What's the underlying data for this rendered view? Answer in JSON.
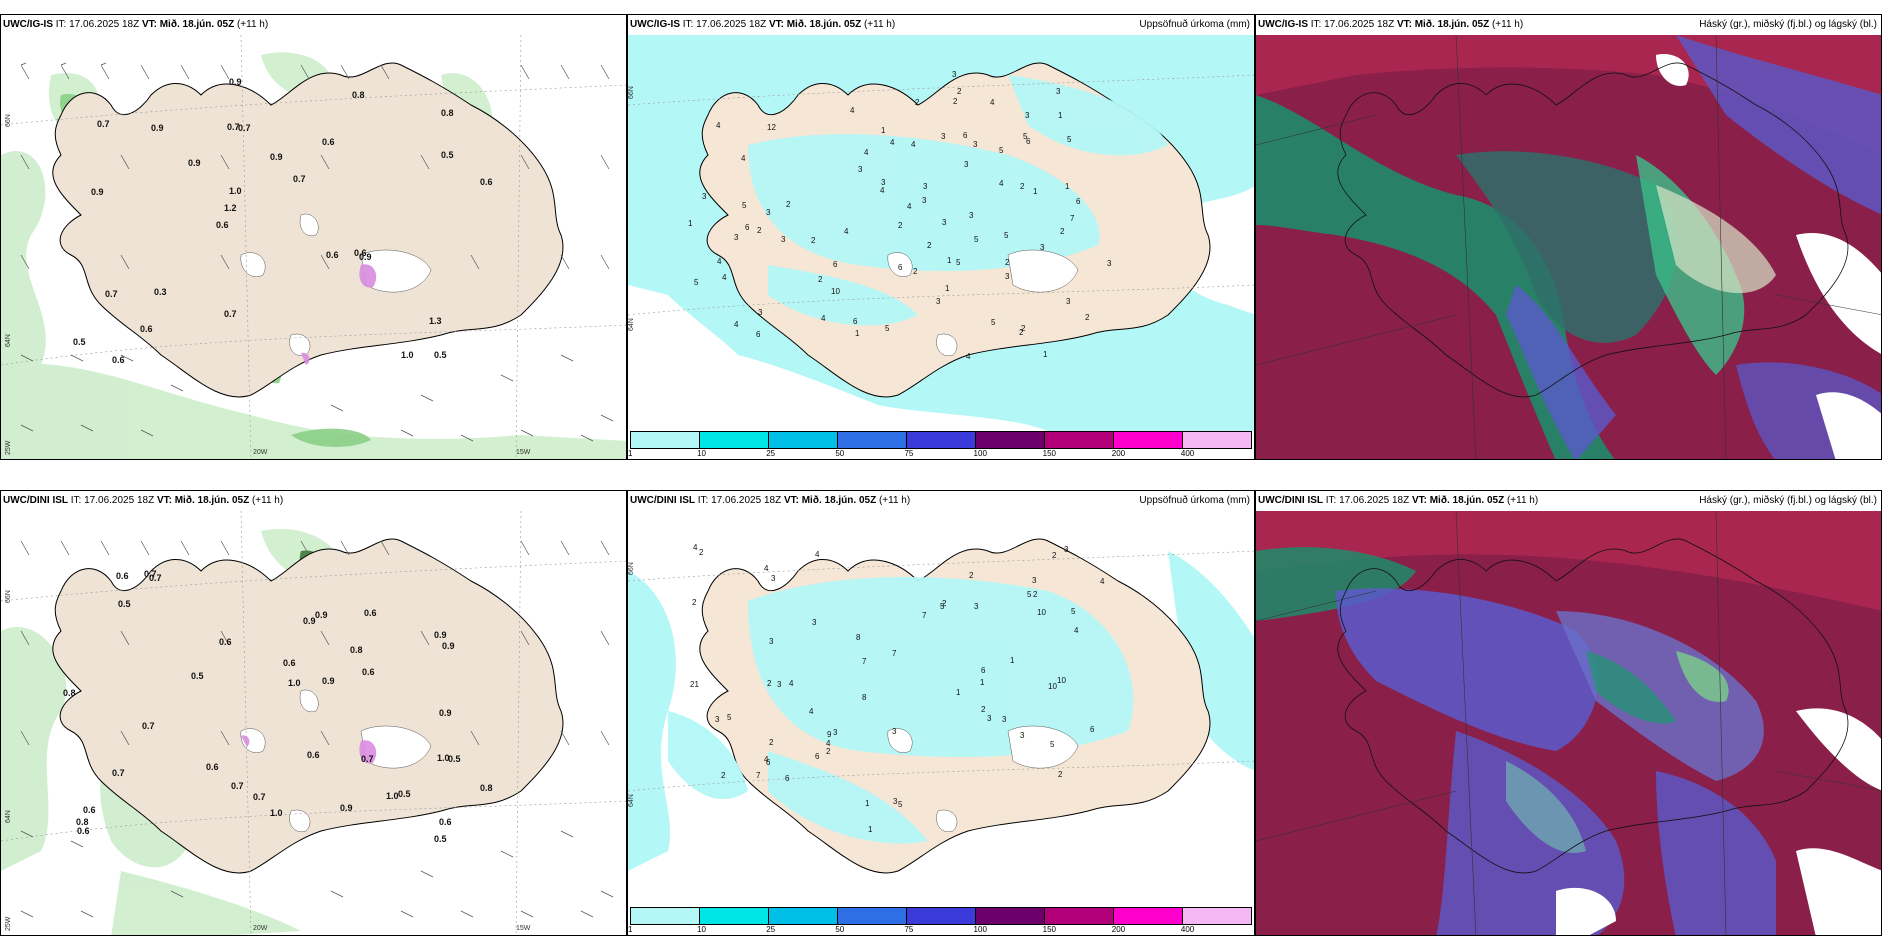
{
  "panels": [
    {
      "id": "p1",
      "title_model": "UWC/IG-IS",
      "title_it": " IT: 17.06.2025 18Z ",
      "title_vt_label": "VT:",
      "title_vt": " Mið. 18.jún. 05Z",
      "title_lead": " (+11 h)",
      "right_title": "",
      "lat_labels": [
        "66N",
        "64N"
      ],
      "lon_labels": [
        "20W",
        "15W",
        "25W"
      ],
      "values": [
        "0.5",
        "0.9",
        "0.8",
        "0.6",
        "0.6",
        "0.6",
        "0.7",
        "0.9",
        "0.7",
        "0.9",
        "0.5",
        "0.6",
        "0.7",
        "0.7",
        "0.9",
        "0.7",
        "0.9",
        "0.6",
        "0.6",
        "0.5",
        "1.2",
        "0.7",
        "1.0",
        "0.9",
        "0.8",
        "0.3",
        "1.0",
        "1.3",
        "0.6"
      ]
    },
    {
      "id": "p2",
      "title_model": "UWC/IG-IS",
      "title_it": " IT: 17.06.2025 18Z ",
      "title_vt_label": "VT:",
      "title_vt": " Mið. 18.jún. 05Z",
      "title_lead": " (+11 h)",
      "right_title": "Uppsöfnuð úrkoma (mm)",
      "lat_labels": [
        "66N",
        "64N"
      ],
      "colorbar": {
        "labels": [
          "1",
          "10",
          "25",
          "50",
          "75",
          "100",
          "150",
          "200",
          "400"
        ],
        "colors": [
          "#b3f7f7",
          "#00e6e6",
          "#00bfe6",
          "#2f6fe6",
          "#3b3bd9",
          "#6b006b",
          "#b3007a",
          "#ff00cc",
          "#f5b8f5"
        ]
      },
      "values": [
        "1",
        "2",
        "1",
        "4",
        "3",
        "4",
        "3",
        "2",
        "5",
        "4",
        "3",
        "2",
        "10",
        "4",
        "3",
        "4",
        "5",
        "4",
        "3",
        "4",
        "3",
        "4",
        "2",
        "3",
        "7",
        "5",
        "3",
        "2",
        "4",
        "1",
        "5",
        "3",
        "2",
        "6",
        "4",
        "3",
        "2",
        "5",
        "3",
        "4",
        "6",
        "2",
        "4",
        "3",
        "4",
        "3",
        "5",
        "2",
        "3",
        "6",
        "5",
        "1",
        "2",
        "1",
        "3",
        "1",
        "1",
        "3",
        "2",
        "4",
        "6",
        "5",
        "12",
        "2",
        "5",
        "4",
        "2",
        "3",
        "4",
        "6",
        "3",
        "5",
        "3",
        "2",
        "3",
        "6",
        "1",
        "1",
        "6",
        "2",
        "3",
        "3",
        "2",
        "6"
      ]
    },
    {
      "id": "p3",
      "title_model": "UWC/IG-IS",
      "title_it": " IT: 17.06.2025 18Z ",
      "title_vt_label": "VT:",
      "title_vt": " Mið. 18.jún. 05Z",
      "title_lead": " (+11 h)",
      "right_title": "Háský (gr.), miðský (fj.bl.) og lágský (bl.)"
    },
    {
      "id": "p4",
      "title_model": "UWC/DINI ISL",
      "title_it": " IT: 17.06.2025 18Z ",
      "title_vt_label": "VT:",
      "title_vt": " Mið. 18.jún. 05Z",
      "title_lead": " (+11 h)",
      "right_title": "",
      "lat_labels": [
        "66N",
        "64N"
      ],
      "lon_labels": [
        "20W",
        "15W",
        "25W"
      ],
      "values": [
        "0.7",
        "0.9",
        "1.0",
        "0.8",
        "0.9",
        "0.5",
        "0.6",
        "0.8",
        "0.5",
        "0.6",
        "0.7",
        "0.6",
        "0.9",
        "1.0",
        "0.6",
        "0.7",
        "0.5",
        "0.9",
        "0.6",
        "0.7",
        "0.7",
        "0.6",
        "0.5",
        "0.6",
        "0.7",
        "0.8",
        "1.0",
        "0.9",
        "0.5",
        "0.6",
        "0.7",
        "0.8",
        "1.0",
        "0.9",
        "0.6",
        "0.9",
        "0.6"
      ]
    },
    {
      "id": "p5",
      "title_model": "UWC/DINI ISL",
      "title_it": " IT: 17.06.2025 18Z ",
      "title_vt_label": "VT:",
      "title_vt": " Mið. 18.jún. 05Z",
      "title_lead": " (+11 h)",
      "right_title": "Uppsöfnuð úrkoma (mm)",
      "lat_labels": [
        "66N",
        "64N"
      ],
      "colorbar": {
        "labels": [
          "1",
          "10",
          "25",
          "50",
          "75",
          "100",
          "150",
          "200",
          "400"
        ],
        "colors": [
          "#b3f7f7",
          "#00e6e6",
          "#00bfe6",
          "#2f6fe6",
          "#3b3bd9",
          "#6b006b",
          "#b3007a",
          "#ff00cc",
          "#f5b8f5"
        ]
      },
      "values": [
        "2",
        "3",
        "2",
        "1",
        "2",
        "5",
        "4",
        "3",
        "7",
        "6",
        "10",
        "6",
        "3",
        "9",
        "2",
        "8",
        "4",
        "7",
        "6",
        "4",
        "3",
        "5",
        "6",
        "7",
        "8",
        "5",
        "2",
        "4",
        "3",
        "5",
        "2",
        "4",
        "3",
        "3",
        "5",
        "10",
        "3",
        "3",
        "1",
        "2",
        "4",
        "4",
        "2",
        "21",
        "7",
        "4",
        "5",
        "2",
        "3",
        "3",
        "3",
        "6",
        "1",
        "2",
        "3",
        "4",
        "10",
        "3",
        "2",
        "2",
        "1",
        "1"
      ]
    },
    {
      "id": "p6",
      "title_model": "UWC/DINI ISL",
      "title_it": " IT: 17.06.2025 18Z ",
      "title_vt_label": "VT:",
      "title_vt": " Mið. 18.jún. 05Z",
      "title_lead": " (+11 h)",
      "right_title": "Háský (gr.), miðský (fj.bl.) og lágský (bl.)"
    }
  ]
}
